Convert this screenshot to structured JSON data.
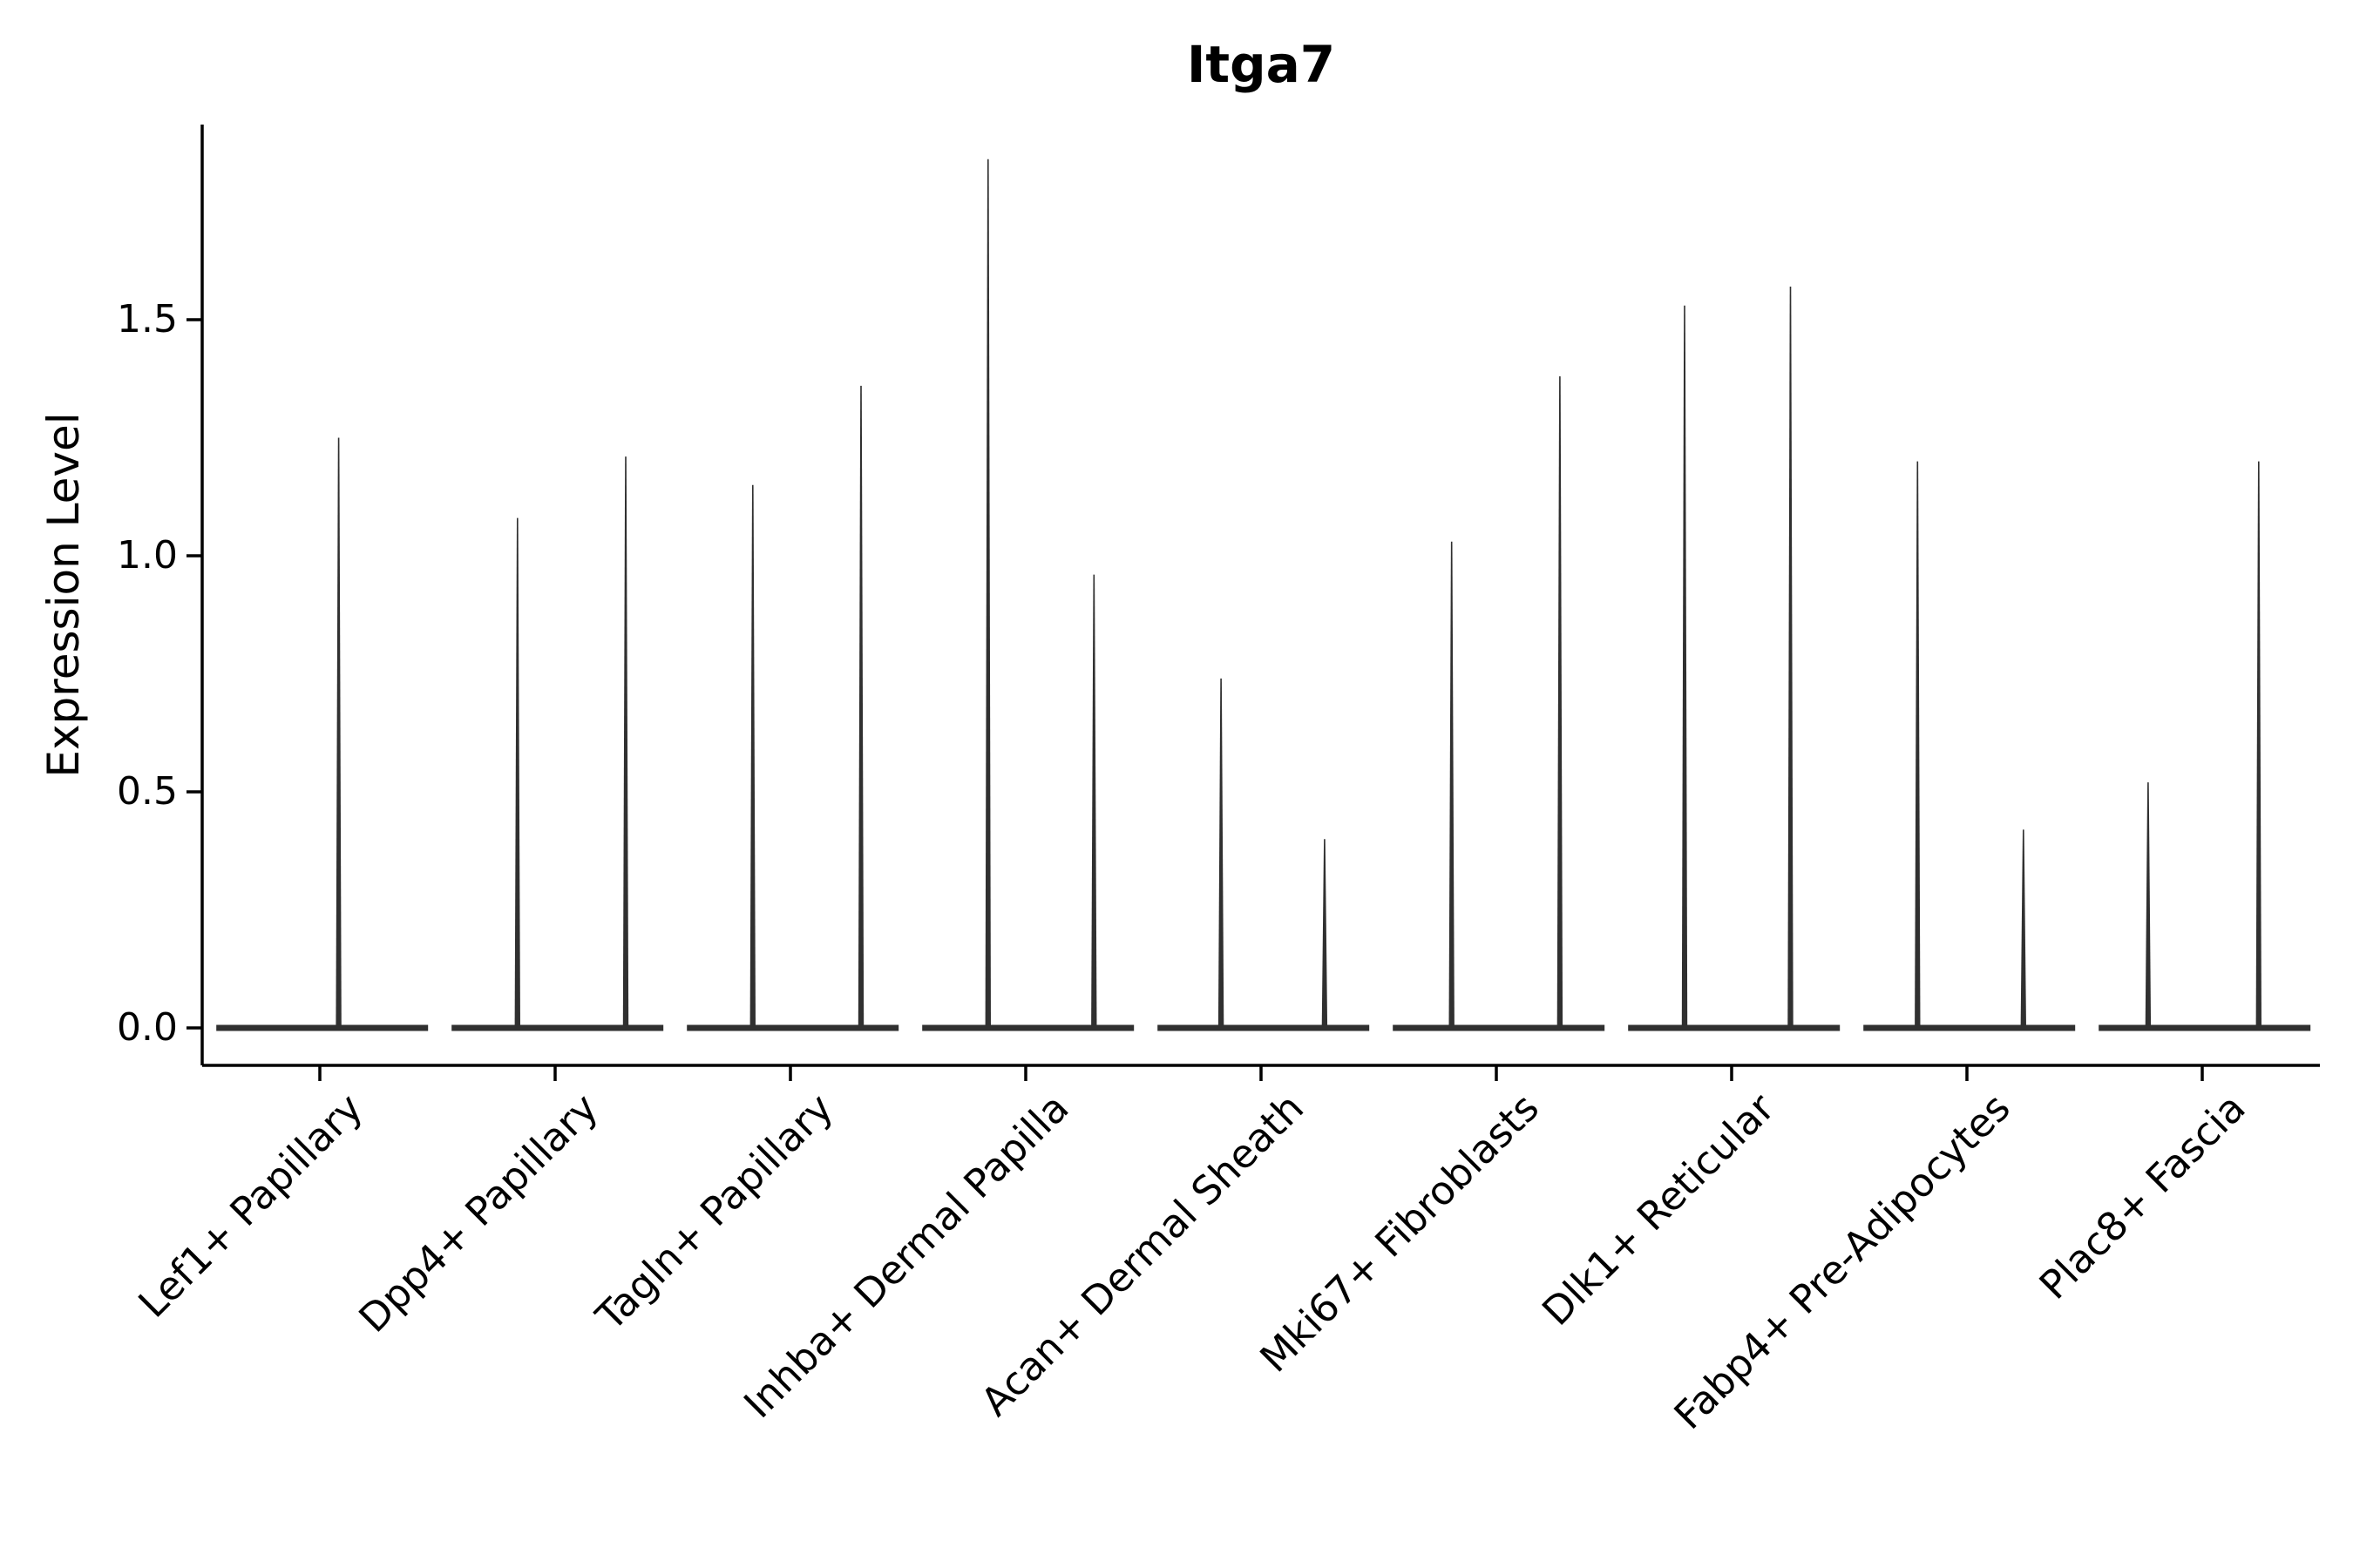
{
  "chart_data": {
    "type": "violin",
    "title": "Itga7",
    "xlabel": "",
    "ylabel": "Expression Level",
    "ylim": [
      -0.08,
      1.91
    ],
    "yticks": [
      "0.0",
      "0.5",
      "1.0",
      "1.5"
    ],
    "grid": false,
    "legend": "none",
    "axis_color": "#000000",
    "violin_color": "#303030",
    "categories": [
      "Lef1+ Papillary",
      "Dpp4+ Papillary",
      "Tagln+ Papillary",
      "Inhba+ Dermal Papilla",
      "Acan+ Dermal Sheath",
      "Mki67+ Fibroblasts",
      "Dlk1+ Reticular",
      "Fabp4+ Pre-Adipocytes",
      "Plac8+ Fascia"
    ],
    "violins": [
      {
        "category": "Lef1+ Papillary",
        "spikes": [
          {
            "pos": 0.58,
            "max": 1.25
          }
        ]
      },
      {
        "category": "Dpp4+ Papillary",
        "spikes": [
          {
            "pos": 0.34,
            "max": 1.08
          },
          {
            "pos": 0.8,
            "max": 1.21
          }
        ]
      },
      {
        "category": "Tagln+ Papillary",
        "spikes": [
          {
            "pos": 0.34,
            "max": 1.15
          },
          {
            "pos": 0.8,
            "max": 1.36
          }
        ]
      },
      {
        "category": "Inhba+ Dermal Papilla",
        "spikes": [
          {
            "pos": 0.34,
            "max": 1.84
          },
          {
            "pos": 0.79,
            "max": 0.96
          }
        ]
      },
      {
        "category": "Acan+ Dermal Sheath",
        "spikes": [
          {
            "pos": 0.33,
            "max": 0.74
          },
          {
            "pos": 0.77,
            "max": 0.4
          }
        ]
      },
      {
        "category": "Mki67+ Fibroblasts",
        "spikes": [
          {
            "pos": 0.31,
            "max": 1.03
          },
          {
            "pos": 0.77,
            "max": 1.38
          }
        ]
      },
      {
        "category": "Dlk1+ Reticular",
        "spikes": [
          {
            "pos": 0.3,
            "max": 1.53
          },
          {
            "pos": 0.75,
            "max": 1.57
          }
        ]
      },
      {
        "category": "Fabp4+ Pre-Adipocytes",
        "spikes": [
          {
            "pos": 0.29,
            "max": 1.2
          },
          {
            "pos": 0.74,
            "max": 0.42
          }
        ]
      },
      {
        "category": "Plac8+ Fascia",
        "spikes": [
          {
            "pos": 0.27,
            "max": 0.52
          },
          {
            "pos": 0.74,
            "max": 1.2
          }
        ]
      }
    ],
    "baseline": {
      "value": 0.0,
      "span": [
        0.06,
        0.96
      ]
    }
  }
}
